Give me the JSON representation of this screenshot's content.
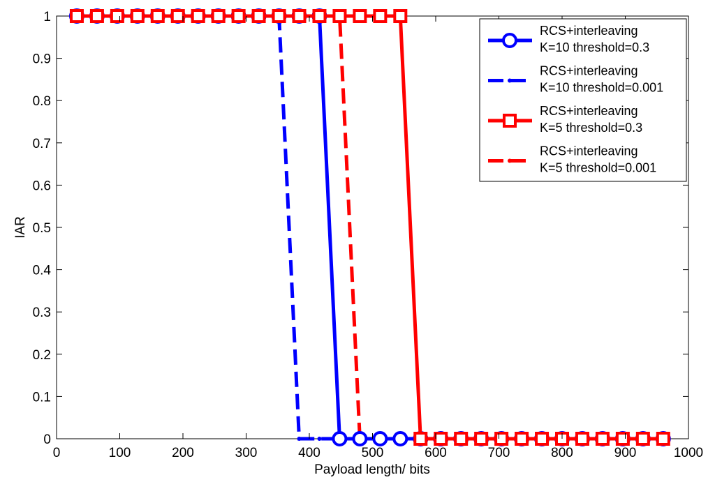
{
  "chart_data": {
    "type": "line",
    "title": "",
    "xlabel": "Payload length/ bits",
    "ylabel": "IAR",
    "xlim": [
      0,
      1000
    ],
    "ylim": [
      0,
      1
    ],
    "xticks": [
      0,
      100,
      200,
      300,
      400,
      500,
      600,
      700,
      800,
      900,
      1000
    ],
    "yticks": [
      0,
      0.1,
      0.2,
      0.3,
      0.4,
      0.5,
      0.6,
      0.7,
      0.8,
      0.9,
      1
    ],
    "grid": false,
    "legend_position": "top-right",
    "x": [
      32,
      64,
      96,
      128,
      160,
      192,
      224,
      256,
      288,
      320,
      352,
      384,
      416,
      448,
      480,
      512,
      544,
      576,
      608,
      640,
      672,
      704,
      736,
      768,
      800,
      832,
      864,
      896,
      928,
      960
    ],
    "series": [
      {
        "name": "RCS+interleaving K=10 threshold=0.3",
        "legend_lines": [
          "RCS+interleaving",
          "K=10 threshold=0.3"
        ],
        "color": "#0000ff",
        "line_style": "solid",
        "marker": "circle",
        "values": [
          1,
          1,
          1,
          1,
          1,
          1,
          1,
          1,
          1,
          1,
          1,
          1,
          1,
          0,
          0,
          0,
          0,
          0,
          0,
          0,
          0,
          0,
          0,
          0,
          0,
          0,
          0,
          0,
          0,
          0
        ]
      },
      {
        "name": "RCS+interleaving K=10 threshold=0.001",
        "legend_lines": [
          "RCS+interleaving",
          "K=10 threshold=0.001"
        ],
        "color": "#0000ff",
        "line_style": "dashed",
        "marker": "dot",
        "values": [
          1,
          1,
          1,
          1,
          1,
          1,
          1,
          1,
          1,
          1,
          1,
          0,
          0,
          0,
          0,
          0,
          0,
          0,
          0,
          0,
          0,
          0,
          0,
          0,
          0,
          0,
          0,
          0,
          0,
          0
        ]
      },
      {
        "name": "RCS+interleaving K=5 threshold=0.3",
        "legend_lines": [
          "RCS+interleaving",
          "K=5 threshold=0.3"
        ],
        "color": "#ff0000",
        "line_style": "solid",
        "marker": "square",
        "values": [
          1,
          1,
          1,
          1,
          1,
          1,
          1,
          1,
          1,
          1,
          1,
          1,
          1,
          1,
          1,
          1,
          1,
          0,
          0,
          0,
          0,
          0,
          0,
          0,
          0,
          0,
          0,
          0,
          0,
          0
        ]
      },
      {
        "name": "RCS+interleaving K=5 threshold=0.001",
        "legend_lines": [
          "RCS+interleaving",
          "K=5 threshold=0.001"
        ],
        "color": "#ff0000",
        "line_style": "dashed",
        "marker": "dot",
        "values": [
          1,
          1,
          1,
          1,
          1,
          1,
          1,
          1,
          1,
          1,
          1,
          1,
          1,
          1,
          0,
          0,
          0,
          0,
          0,
          0,
          0,
          0,
          0,
          0,
          0,
          0,
          0,
          0,
          0,
          0
        ]
      }
    ]
  }
}
